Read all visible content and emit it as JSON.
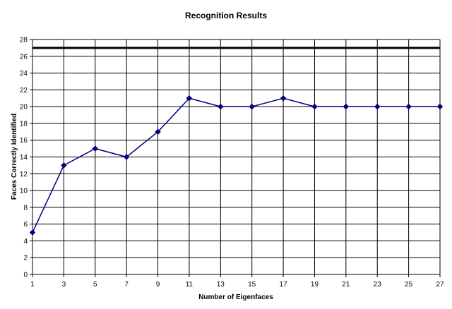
{
  "chart_data": {
    "type": "line",
    "title": "Recognition Results",
    "xlabel": "Number of Eigenfaces",
    "ylabel": "Faces Correctly Identified",
    "x": [
      1,
      3,
      5,
      7,
      9,
      11,
      13,
      15,
      17,
      19,
      21,
      23,
      25,
      27
    ],
    "series": [
      {
        "values": [
          5,
          13,
          15,
          14,
          17,
          21,
          20,
          20,
          21,
          20,
          20,
          20,
          20,
          20
        ],
        "color": "#000080",
        "marker": "diamond"
      }
    ],
    "reference_line": {
      "y": 27,
      "color": "#000000"
    },
    "xticks": [
      "1",
      "3",
      "5",
      "7",
      "9",
      "11",
      "13",
      "15",
      "17",
      "19",
      "21",
      "23",
      "25",
      "27"
    ],
    "yticks": [
      "0",
      "2",
      "4",
      "6",
      "8",
      "10",
      "12",
      "14",
      "16",
      "18",
      "20",
      "22",
      "24",
      "26",
      "28"
    ],
    "xlim": [
      1,
      27
    ],
    "ylim": [
      0,
      28
    ],
    "grid": true,
    "legend": "none"
  }
}
